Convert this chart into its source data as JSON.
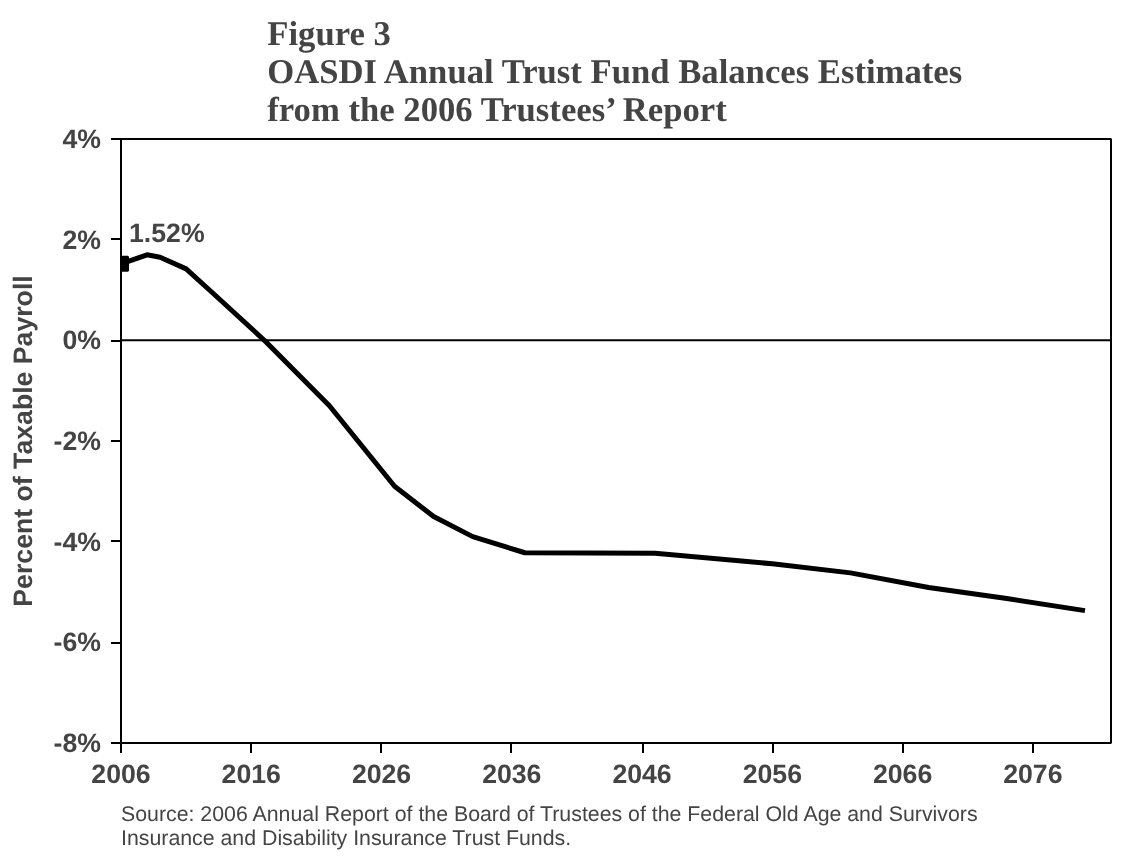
{
  "chart_data": {
    "type": "line",
    "title": "Figure 3\nOASDI Annual Trust Fund Balances Estimates\nfrom the 2006 Trustees’ Report",
    "ylabel": "Percent of Taxable Payroll",
    "x": [
      2006,
      2008,
      2009,
      2011,
      2013,
      2017,
      2022,
      2027,
      2030,
      2033,
      2037,
      2047,
      2056,
      2062,
      2068,
      2074,
      2080
    ],
    "series": [
      {
        "color": "#000000",
        "values": [
          1.52,
          1.7,
          1.65,
          1.42,
          0.95,
          0,
          -1.3,
          -2.9,
          -3.5,
          -3.9,
          -4.22,
          -4.23,
          -4.44,
          -4.62,
          -4.91,
          -5.13,
          -5.37
        ],
        "marker": "none"
      },
      {
        "type": "scatter",
        "color": "#000000",
        "x": [
          2006
        ],
        "values": [
          1.52
        ],
        "marker": "square"
      }
    ],
    "xlim": [
      2006,
      2082
    ],
    "xticks": [
      2006,
      2016,
      2026,
      2036,
      2046,
      2056,
      2066,
      2076
    ],
    "ylim": [
      -8,
      4
    ],
    "yticks": [
      {
        "value": -8,
        "label": "-8%"
      },
      {
        "value": -6,
        "label": "-6%"
      },
      {
        "value": -4,
        "label": "-4%"
      },
      {
        "value": -2,
        "label": "-2%"
      },
      {
        "value": 0,
        "label": "0%"
      },
      {
        "value": 2,
        "label": "2%"
      },
      {
        "value": 4,
        "label": "4%"
      }
    ],
    "ref_lines": [
      {
        "axis": "y",
        "value": 0,
        "color": "#000000"
      }
    ],
    "annotations": [
      {
        "text": "1.52%",
        "x": 2006,
        "y": 1.52
      },
      "Source: 2006 Annual Report of the Board of Trustees of the Federal Old Age and Survivors Insurance and Disability  Insurance Trust Funds."
    ],
    "grid": false
  }
}
